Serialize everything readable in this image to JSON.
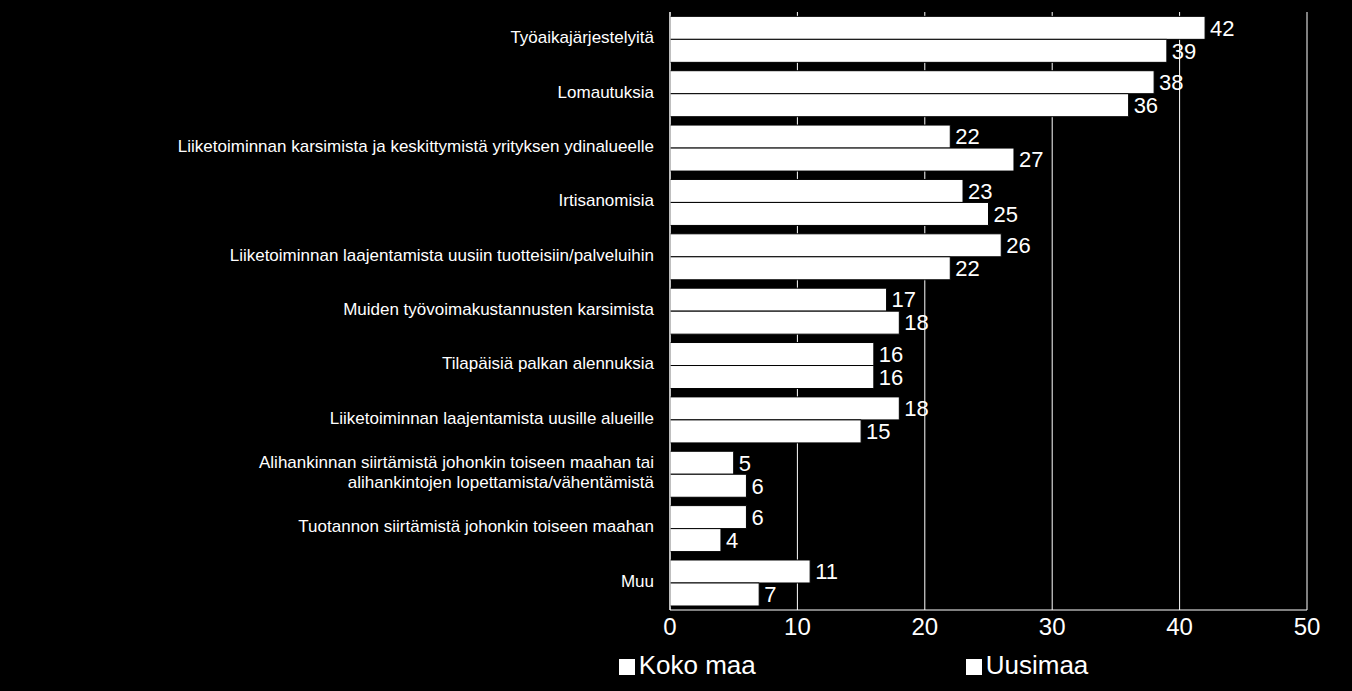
{
  "chart_data": {
    "type": "bar",
    "orientation": "horizontal",
    "categories": [
      "Työaikajärjestelyitä",
      "Lomautuksia",
      "Liiketoiminnan karsimista ja keskittymistä yrityksen ydinalueelle",
      "Irtisanomisia",
      "Liiketoiminnan laajentamista uusiin tuotteisiin/palveluihin",
      "Muiden työvoimakustannusten karsimista",
      "Tilapäisiä palkan alennuksia",
      "Liiketoiminnan laajentamista uusille alueille",
      "Alihankinnan siirtämistä johonkin toiseen maahan tai alihankintojen lopettamista/vähentämistä",
      "Tuotannon siirtämistä johonkin toiseen maahan",
      "Muu"
    ],
    "series": [
      {
        "name": "Uusimaa",
        "color": "#ffffff",
        "values": [
          42,
          38,
          22,
          23,
          26,
          17,
          16,
          18,
          5,
          6,
          11
        ]
      },
      {
        "name": "Koko maa",
        "color": "#ffffff",
        "values": [
          39,
          36,
          27,
          25,
          22,
          18,
          16,
          15,
          6,
          4,
          7
        ]
      }
    ],
    "xlim": [
      0,
      50
    ],
    "xticks": [
      0,
      10,
      20,
      30,
      40,
      50
    ],
    "grid": true,
    "legend": "bottom",
    "data_labels": true
  }
}
